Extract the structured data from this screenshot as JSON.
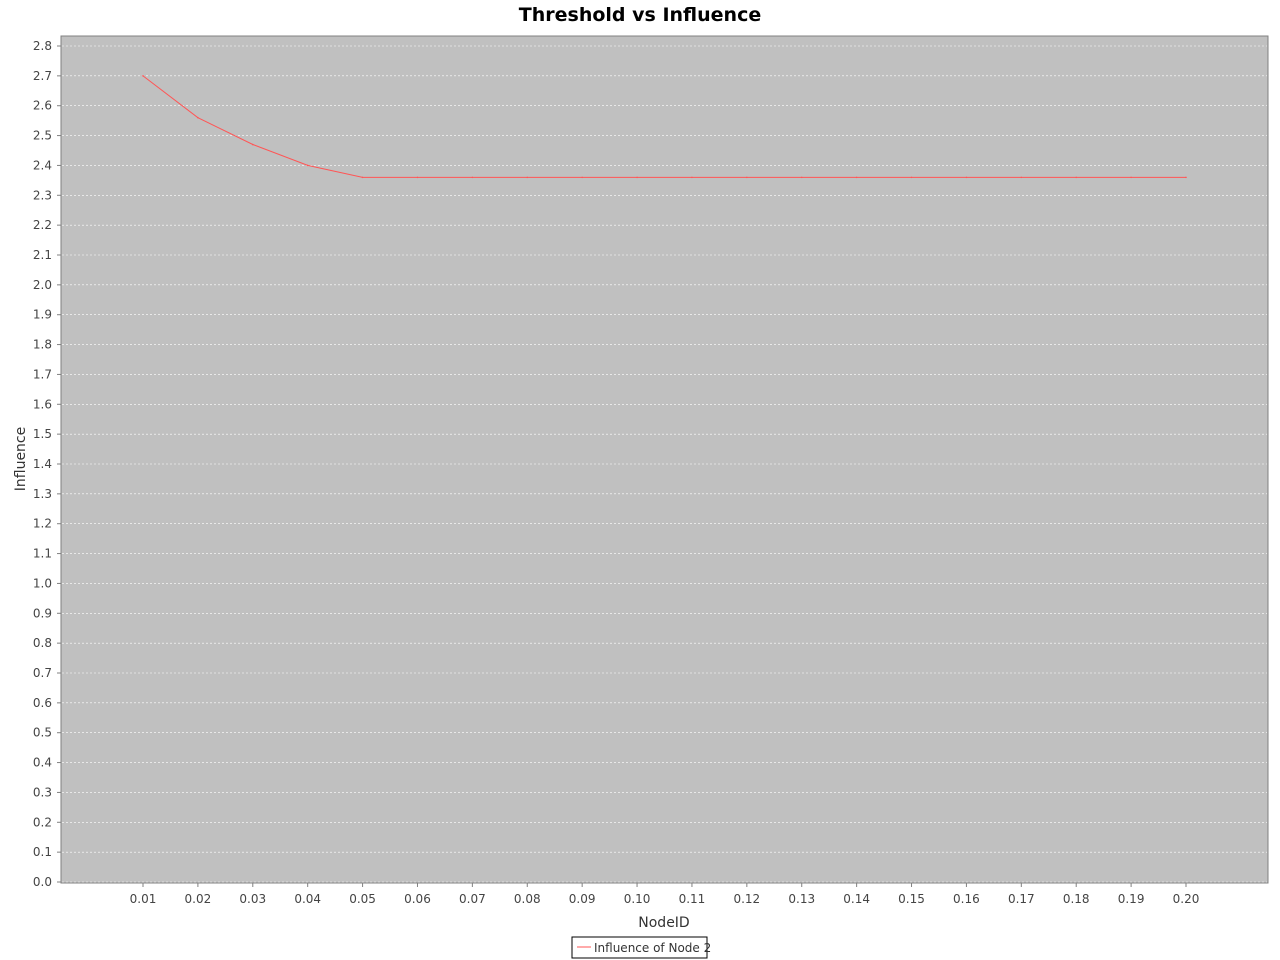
{
  "chart_data": {
    "type": "line",
    "title": "Threshold vs Influence",
    "xlabel": "NodeID",
    "ylabel": "Influence",
    "categories": [
      "0.01",
      "0.02",
      "0.03",
      "0.04",
      "0.05",
      "0.06",
      "0.07",
      "0.08",
      "0.09",
      "0.10",
      "0.11",
      "0.12",
      "0.13",
      "0.14",
      "0.15",
      "0.16",
      "0.17",
      "0.18",
      "0.19",
      "0.20"
    ],
    "series": [
      {
        "name": "Influence of Node 2",
        "color": "#ff5555",
        "values": [
          2.7,
          2.56,
          2.47,
          2.4,
          2.36,
          2.36,
          2.36,
          2.36,
          2.36,
          2.36,
          2.36,
          2.36,
          2.36,
          2.36,
          2.36,
          2.36,
          2.36,
          2.36,
          2.36,
          2.36
        ]
      }
    ],
    "ylim": [
      0.0,
      2.8
    ],
    "yticks": [
      "0.0",
      "0.1",
      "0.2",
      "0.3",
      "0.4",
      "0.5",
      "0.6",
      "0.7",
      "0.8",
      "0.9",
      "1.0",
      "1.1",
      "1.2",
      "1.3",
      "1.4",
      "1.5",
      "1.6",
      "1.7",
      "1.8",
      "1.9",
      "2.0",
      "2.1",
      "2.2",
      "2.3",
      "2.4",
      "2.5",
      "2.6",
      "2.7",
      "2.8"
    ],
    "grid": true,
    "legend_position": "bottom-center",
    "plot_background": "#c0c0c0",
    "gridline_color": "#ffffff"
  }
}
